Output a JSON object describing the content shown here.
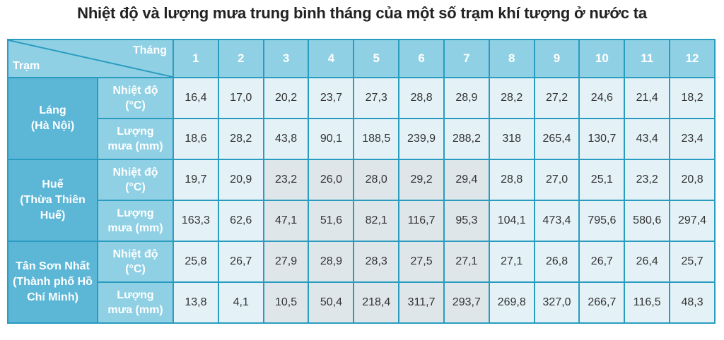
{
  "title": "Nhiệt độ và lượng mưa trung bình tháng của một số trạm khí tượng ở nước ta",
  "header": {
    "month_label": "Tháng",
    "station_label": "Trạm",
    "months": [
      "1",
      "2",
      "3",
      "4",
      "5",
      "6",
      "7",
      "8",
      "9",
      "10",
      "11",
      "12"
    ]
  },
  "colors": {
    "header_bg": "#8fd0e4",
    "station_bg": "#5cb6d6",
    "border": "#2a9cc0",
    "cell_bg": "#e4f2f8"
  },
  "stations": [
    {
      "name": "Láng",
      "region": "(Hà Nội)",
      "rows": [
        {
          "label1": "Nhiệt độ",
          "label2": "(°C)",
          "values": [
            "16,4",
            "17,0",
            "20,2",
            "23,7",
            "27,3",
            "28,8",
            "28,9",
            "28,2",
            "27,2",
            "24,6",
            "21,4",
            "18,2"
          ]
        },
        {
          "label1": "Lượng",
          "label2": "mưa (mm)",
          "values": [
            "18,6",
            "28,2",
            "43,8",
            "90,1",
            "188,5",
            "239,9",
            "288,2",
            "318",
            "265,4",
            "130,7",
            "43,4",
            "23,4"
          ]
        }
      ]
    },
    {
      "name": "Huế",
      "region": "(Thừa Thiên Huế)",
      "rows": [
        {
          "label1": "Nhiệt độ",
          "label2": "(°C)",
          "values": [
            "19,7",
            "20,9",
            "23,2",
            "26,0",
            "28,0",
            "29,2",
            "29,4",
            "28,8",
            "27,0",
            "25,1",
            "23,2",
            "20,8"
          ]
        },
        {
          "label1": "Lượng",
          "label2": "mưa (mm)",
          "values": [
            "163,3",
            "62,6",
            "47,1",
            "51,6",
            "82,1",
            "116,7",
            "95,3",
            "104,1",
            "473,4",
            "795,6",
            "580,6",
            "297,4"
          ]
        }
      ]
    },
    {
      "name": "Tân Sơn Nhất",
      "region": "(Thành phố Hồ Chí Minh)",
      "rows": [
        {
          "label1": "Nhiệt độ",
          "label2": "(°C)",
          "values": [
            "25,8",
            "26,7",
            "27,9",
            "28,9",
            "28,3",
            "27,5",
            "27,1",
            "27,1",
            "26,8",
            "26,7",
            "26,4",
            "25,7"
          ]
        },
        {
          "label1": "Lượng",
          "label2": "mưa (mm)",
          "values": [
            "13,8",
            "4,1",
            "10,5",
            "50,4",
            "218,4",
            "311,7",
            "293,7",
            "269,8",
            "327,0",
            "266,7",
            "116,5",
            "48,3"
          ]
        }
      ]
    }
  ]
}
